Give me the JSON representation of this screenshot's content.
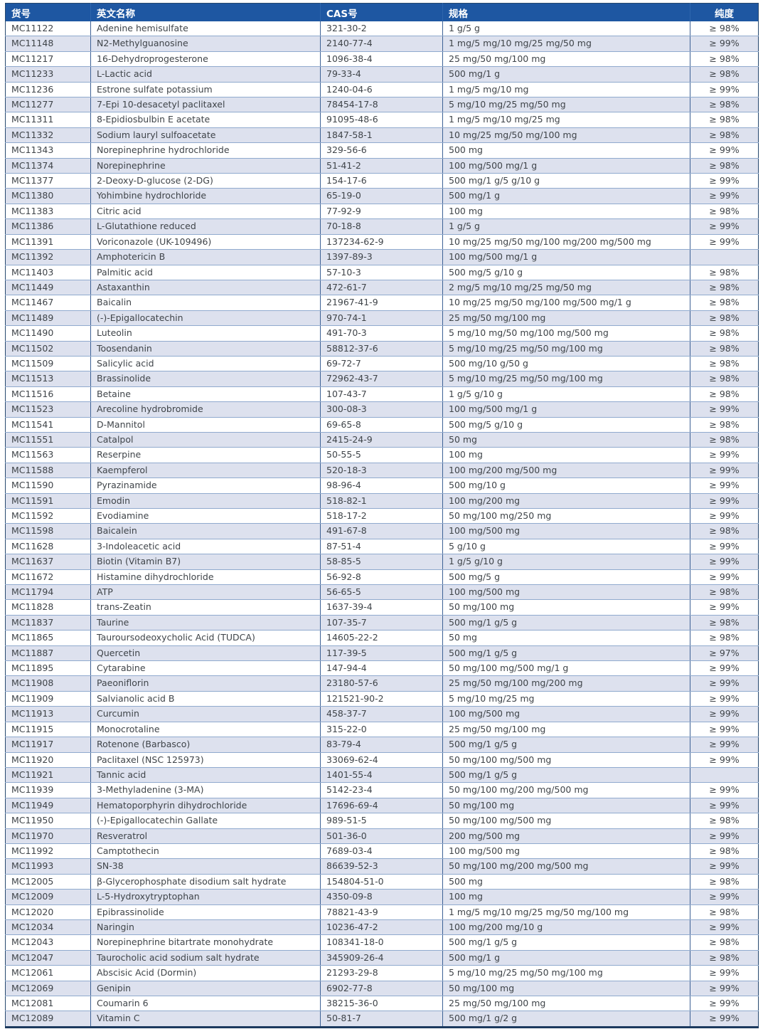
{
  "colors": {
    "header_bg": "#1e57a2",
    "header_text": "#ffffff",
    "row_alt_bg": "#dde1ee",
    "row_border": "#90aace",
    "column_border": "#3d6195",
    "outer_frame": "#1c3a5f",
    "body_text": "#3f4449"
  },
  "table": {
    "columns": [
      {
        "key": "code",
        "label": "货号"
      },
      {
        "key": "name",
        "label": "英文名称"
      },
      {
        "key": "cas",
        "label": "CAS号"
      },
      {
        "key": "spec",
        "label": "规格"
      },
      {
        "key": "purity",
        "label": "纯度"
      }
    ],
    "rows": [
      [
        "MC11122",
        "Adenine hemisulfate",
        "321-30-2",
        "1 g/5 g",
        "≥ 98%"
      ],
      [
        "MC11148",
        "N2-Methylguanosine",
        "2140-77-4",
        "1 mg/5 mg/10 mg/25 mg/50 mg",
        "≥ 99%"
      ],
      [
        "MC11217",
        "16-Dehydroprogesterone",
        "1096-38-4",
        "25 mg/50 mg/100 mg",
        "≥ 98%"
      ],
      [
        "MC11233",
        "L-Lactic acid",
        "79-33-4",
        "500 mg/1 g",
        "≥ 98%"
      ],
      [
        "MC11236",
        "Estrone sulfate potassium",
        "1240-04-6",
        "1 mg/5 mg/10 mg",
        "≥ 99%"
      ],
      [
        "MC11277",
        "7-Epi 10-desacetyl paclitaxel",
        "78454-17-8",
        "5 mg/10 mg/25 mg/50 mg",
        "≥ 98%"
      ],
      [
        "MC11311",
        "8-Epidiosbulbin E acetate",
        "91095-48-6",
        "1 mg/5 mg/10 mg/25 mg",
        "≥ 98%"
      ],
      [
        "MC11332",
        "Sodium lauryl sulfoacetate",
        "1847-58-1",
        "10 mg/25 mg/50 mg/100 mg",
        "≥ 98%"
      ],
      [
        "MC11343",
        "Norepinephrine hydrochloride",
        "329-56-6",
        "500 mg",
        "≥ 99%"
      ],
      [
        "MC11374",
        "Norepinephrine",
        "51-41-2",
        "100 mg/500 mg/1 g",
        "≥ 98%"
      ],
      [
        "MC11377",
        "2-Deoxy-D-glucose (2-DG)",
        "154-17-6",
        "500 mg/1 g/5 g/10 g",
        "≥ 99%"
      ],
      [
        "MC11380",
        "Yohimbine hydrochloride",
        "65-19-0",
        "500 mg/1 g",
        "≥ 99%"
      ],
      [
        "MC11383",
        "Citric acid",
        "77-92-9",
        "100 mg",
        "≥ 98%"
      ],
      [
        "MC11386",
        "L-Glutathione reduced",
        "70-18-8",
        "1 g/5 g",
        "≥ 99%"
      ],
      [
        "MC11391",
        "Voriconazole (UK-109496)",
        "137234-62-9",
        "10 mg/25 mg/50 mg/100 mg/200 mg/500 mg",
        "≥ 99%"
      ],
      [
        "MC11392",
        "Amphotericin B",
        "1397-89-3",
        "100 mg/500 mg/1 g",
        ""
      ],
      [
        "MC11403",
        "Palmitic acid",
        "57-10-3",
        "500 mg/5 g/10 g",
        "≥ 98%"
      ],
      [
        "MC11449",
        "Astaxanthin",
        "472-61-7",
        "2 mg/5 mg/10 mg/25 mg/50 mg",
        "≥ 98%"
      ],
      [
        "MC11467",
        "Baicalin",
        "21967-41-9",
        "10 mg/25 mg/50 mg/100 mg/500 mg/1 g",
        "≥ 98%"
      ],
      [
        "MC11489",
        "(-)-Epigallocatechin",
        "970-74-1",
        "25 mg/50 mg/100 mg",
        "≥ 98%"
      ],
      [
        "MC11490",
        "Luteolin",
        "491-70-3",
        "5 mg/10 mg/50 mg/100 mg/500 mg",
        "≥ 98%"
      ],
      [
        "MC11502",
        "Toosendanin",
        "58812-37-6",
        "5 mg/10 mg/25 mg/50 mg/100 mg",
        "≥ 98%"
      ],
      [
        "MC11509",
        "Salicylic acid",
        "69-72-7",
        "500 mg/10 g/50 g",
        "≥ 98%"
      ],
      [
        "MC11513",
        "Brassinolide",
        "72962-43-7",
        "5 mg/10 mg/25 mg/50 mg/100 mg",
        "≥ 98%"
      ],
      [
        "MC11516",
        "Betaine",
        "107-43-7",
        "1 g/5 g/10 g",
        "≥ 98%"
      ],
      [
        "MC11523",
        "Arecoline hydrobromide",
        "300-08-3",
        "100 mg/500 mg/1 g",
        "≥ 99%"
      ],
      [
        "MC11541",
        "D-Mannitol",
        "69-65-8",
        "500 mg/5 g/10 g",
        "≥ 98%"
      ],
      [
        "MC11551",
        "Catalpol",
        "2415-24-9",
        "50 mg",
        "≥ 98%"
      ],
      [
        "MC11563",
        "Reserpine",
        "50-55-5",
        "100 mg",
        "≥ 99%"
      ],
      [
        "MC11588",
        "Kaempferol",
        "520-18-3",
        "100 mg/200 mg/500 mg",
        "≥ 99%"
      ],
      [
        "MC11590",
        "Pyrazinamide",
        "98-96-4",
        "500 mg/10 g",
        "≥ 99%"
      ],
      [
        "MC11591",
        "Emodin",
        "518-82-1",
        "100 mg/200 mg",
        "≥ 99%"
      ],
      [
        "MC11592",
        "Evodiamine",
        "518-17-2",
        "50 mg/100 mg/250 mg",
        "≥ 99%"
      ],
      [
        "MC11598",
        "Baicalein",
        "491-67-8",
        "100 mg/500 mg",
        "≥ 98%"
      ],
      [
        "MC11628",
        "3-Indoleacetic acid",
        "87-51-4",
        "5 g/10 g",
        "≥ 99%"
      ],
      [
        "MC11637",
        "Biotin (Vitamin B7)",
        "58-85-5",
        "1 g/5 g/10 g",
        "≥ 99%"
      ],
      [
        "MC11672",
        "Histamine dihydrochloride",
        "56-92-8",
        "500 mg/5 g",
        "≥ 99%"
      ],
      [
        "MC11794",
        "ATP",
        "56-65-5",
        "100 mg/500 mg",
        "≥ 98%"
      ],
      [
        "MC11828",
        "trans-Zeatin",
        "1637-39-4",
        "50 mg/100 mg",
        "≥ 99%"
      ],
      [
        "MC11837",
        "Taurine",
        "107-35-7",
        "500 mg/1 g/5 g",
        "≥ 98%"
      ],
      [
        "MC11865",
        "Tauroursodeoxycholic Acid (TUDCA)",
        "14605-22-2",
        "50 mg",
        "≥ 98%"
      ],
      [
        "MC11887",
        "Quercetin",
        "117-39-5",
        "500 mg/1 g/5 g",
        "≥ 97%"
      ],
      [
        "MC11895",
        "Cytarabine",
        "147-94-4",
        "50 mg/100 mg/500 mg/1 g",
        "≥ 99%"
      ],
      [
        "MC11908",
        "Paeoniflorin",
        "23180-57-6",
        "25 mg/50 mg/100 mg/200 mg",
        "≥ 99%"
      ],
      [
        "MC11909",
        "Salvianolic acid B",
        "121521-90-2",
        "5 mg/10 mg/25 mg",
        "≥ 99%"
      ],
      [
        "MC11913",
        "Curcumin",
        "458-37-7",
        "100 mg/500 mg",
        "≥ 99%"
      ],
      [
        "MC11915",
        "Monocrotaline",
        "315-22-0",
        "25 mg/50 mg/100 mg",
        "≥ 99%"
      ],
      [
        "MC11917",
        "Rotenone (Barbasco)",
        "83-79-4",
        "500 mg/1 g/5 g",
        "≥ 99%"
      ],
      [
        "MC11920",
        "Paclitaxel (NSC 125973)",
        "33069-62-4",
        "50 mg/100 mg/500 mg",
        "≥ 99%"
      ],
      [
        "MC11921",
        "Tannic acid",
        "1401-55-4",
        "500 mg/1 g/5 g",
        ""
      ],
      [
        "MC11939",
        "3-Methyladenine (3-MA)",
        "5142-23-4",
        "50 mg/100 mg/200 mg/500 mg",
        "≥ 99%"
      ],
      [
        "MC11949",
        "Hematoporphyrin dihydrochloride",
        "17696-69-4",
        "50 mg/100 mg",
        "≥ 99%"
      ],
      [
        "MC11950",
        "(-)-Epigallocatechin Gallate",
        "989-51-5",
        "50 mg/100 mg/500 mg",
        "≥ 98%"
      ],
      [
        "MC11970",
        "Resveratrol",
        "501-36-0",
        "200 mg/500 mg",
        "≥ 99%"
      ],
      [
        "MC11992",
        "Camptothecin",
        "7689-03-4",
        "100 mg/500 mg",
        "≥ 98%"
      ],
      [
        "MC11993",
        "SN-38",
        "86639-52-3",
        "50 mg/100 mg/200 mg/500 mg",
        "≥ 99%"
      ],
      [
        "MC12005",
        "β-Glycerophosphate disodium salt hydrate",
        "154804-51-0",
        "500 mg",
        "≥ 98%"
      ],
      [
        "MC12009",
        "L-5-Hydroxytryptophan",
        "4350-09-8",
        "100 mg",
        "≥ 99%"
      ],
      [
        "MC12020",
        "Epibrassinolide",
        "78821-43-9",
        "1 mg/5 mg/10 mg/25 mg/50 mg/100 mg",
        "≥ 98%"
      ],
      [
        "MC12034",
        "Naringin",
        "10236-47-2",
        "100 mg/200 mg/10 g",
        "≥ 99%"
      ],
      [
        "MC12043",
        "Norepinephrine bitartrate monohydrate",
        "108341-18-0",
        "500 mg/1 g/5 g",
        "≥ 98%"
      ],
      [
        "MC12047",
        "Taurocholic acid sodium salt hydrate",
        "345909-26-4",
        "500 mg/1 g",
        "≥ 98%"
      ],
      [
        "MC12061",
        "Abscisic Acid (Dormin)",
        "21293-29-8",
        "5 mg/10 mg/25 mg/50 mg/100 mg",
        "≥ 99%"
      ],
      [
        "MC12069",
        "Genipin",
        "6902-77-8",
        "50 mg/100 mg",
        "≥ 99%"
      ],
      [
        "MC12081",
        "Coumarin 6",
        "38215-36-0",
        "25 mg/50 mg/100 mg",
        "≥ 99%"
      ],
      [
        "MC12089",
        "Vitamin C",
        "50-81-7",
        "500 mg/1 g/2 g",
        "≥ 99%"
      ]
    ]
  }
}
